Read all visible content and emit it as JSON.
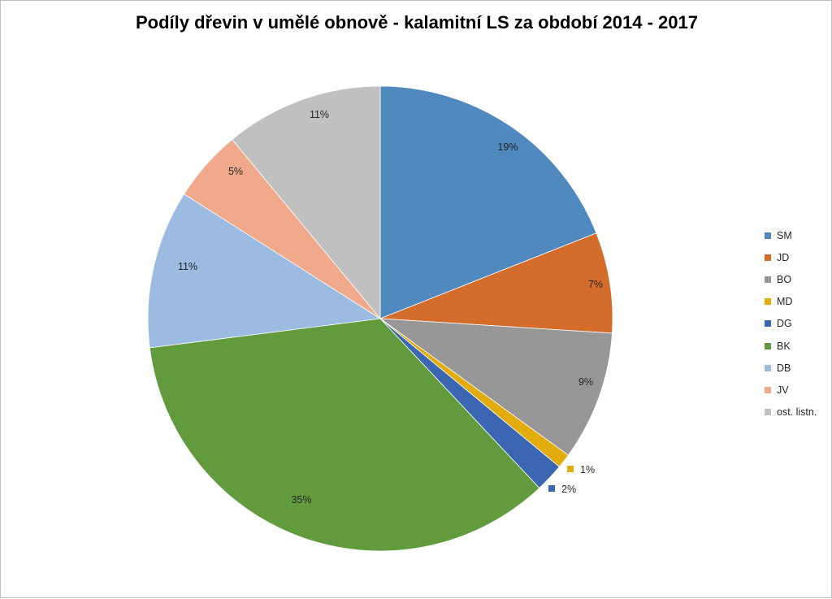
{
  "chart_data": {
    "type": "pie",
    "title": "Podíly dřevin v umělé obnově - kalamitní LS za období 2014 - 2017",
    "categories": [
      "SM",
      "JD",
      "BO",
      "MD",
      "DG",
      "BK",
      "DB",
      "JV",
      "ost. listn."
    ],
    "values": [
      19,
      7,
      9,
      1,
      2,
      35,
      11,
      5,
      11
    ],
    "data_labels": [
      "19%",
      "7%",
      "9%",
      "1%",
      "2%",
      "35%",
      "11%",
      "5%",
      "11%"
    ],
    "colors": [
      "#4f89bd",
      "#d46c2b",
      "#979797",
      "#e2ac0c",
      "#3b67b2",
      "#629b3e",
      "#9cbbe0",
      "#f1a98b",
      "#c0c0c0"
    ],
    "legend": "right",
    "start_angle": "12 o'clock",
    "direction": "clockwise"
  }
}
